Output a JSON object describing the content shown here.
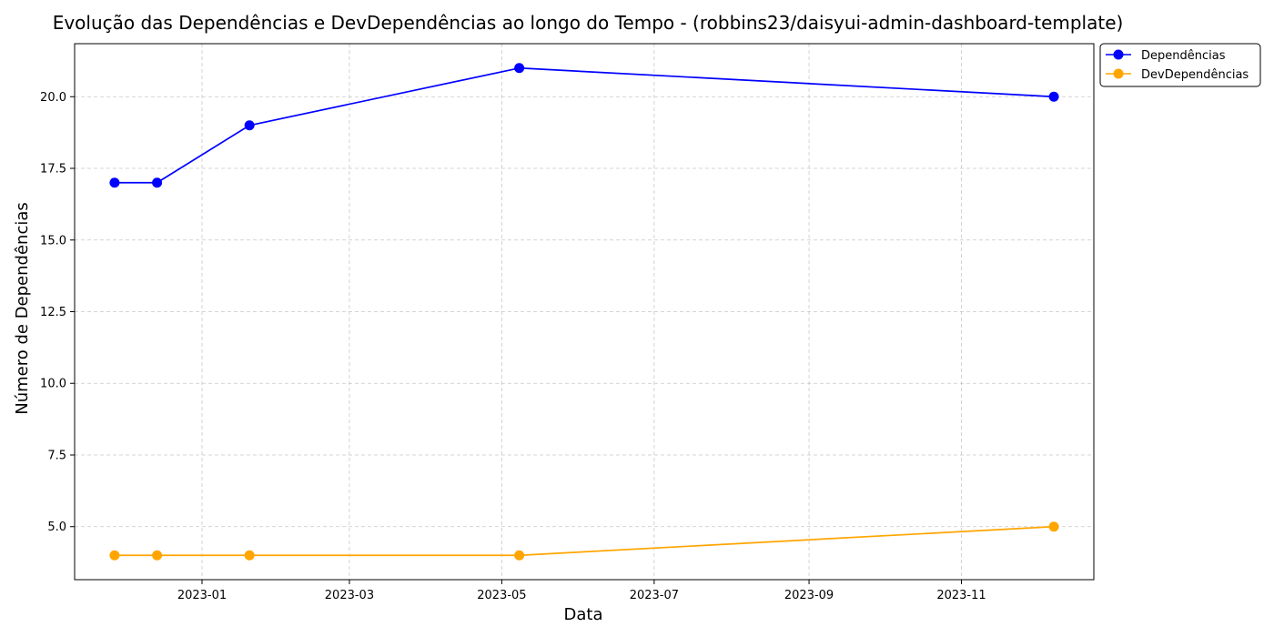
{
  "chart_data": {
    "type": "line",
    "title": "Evolução das Dependências e DevDependências ao longo do Tempo - (robbins23/daisyui-admin-dashboard-template)",
    "xlabel": "Data",
    "ylabel": "Número de Dependências",
    "x": [
      "2022-11-27",
      "2022-12-14",
      "2023-01-20",
      "2023-05-08",
      "2023-12-08"
    ],
    "series": [
      {
        "name": "Dependências",
        "color": "#0000ff",
        "marker": "circle",
        "values": [
          17,
          17,
          19,
          21,
          20
        ]
      },
      {
        "name": "DevDependências",
        "color": "#ffa500",
        "marker": "circle",
        "values": [
          4,
          4,
          4,
          4,
          5
        ]
      }
    ],
    "xlim": [
      "2022-11-11",
      "2023-12-24"
    ],
    "ylim": [
      3.15,
      21.85
    ],
    "x_ticks": [
      "2023-01",
      "2023-03",
      "2023-05",
      "2023-07",
      "2023-09",
      "2023-11"
    ],
    "y_ticks": [
      "5.0",
      "7.5",
      "10.0",
      "12.5",
      "15.0",
      "17.5",
      "20.0"
    ],
    "grid": true,
    "grid_style": "dashed",
    "legend_position": "outside-top-right"
  }
}
